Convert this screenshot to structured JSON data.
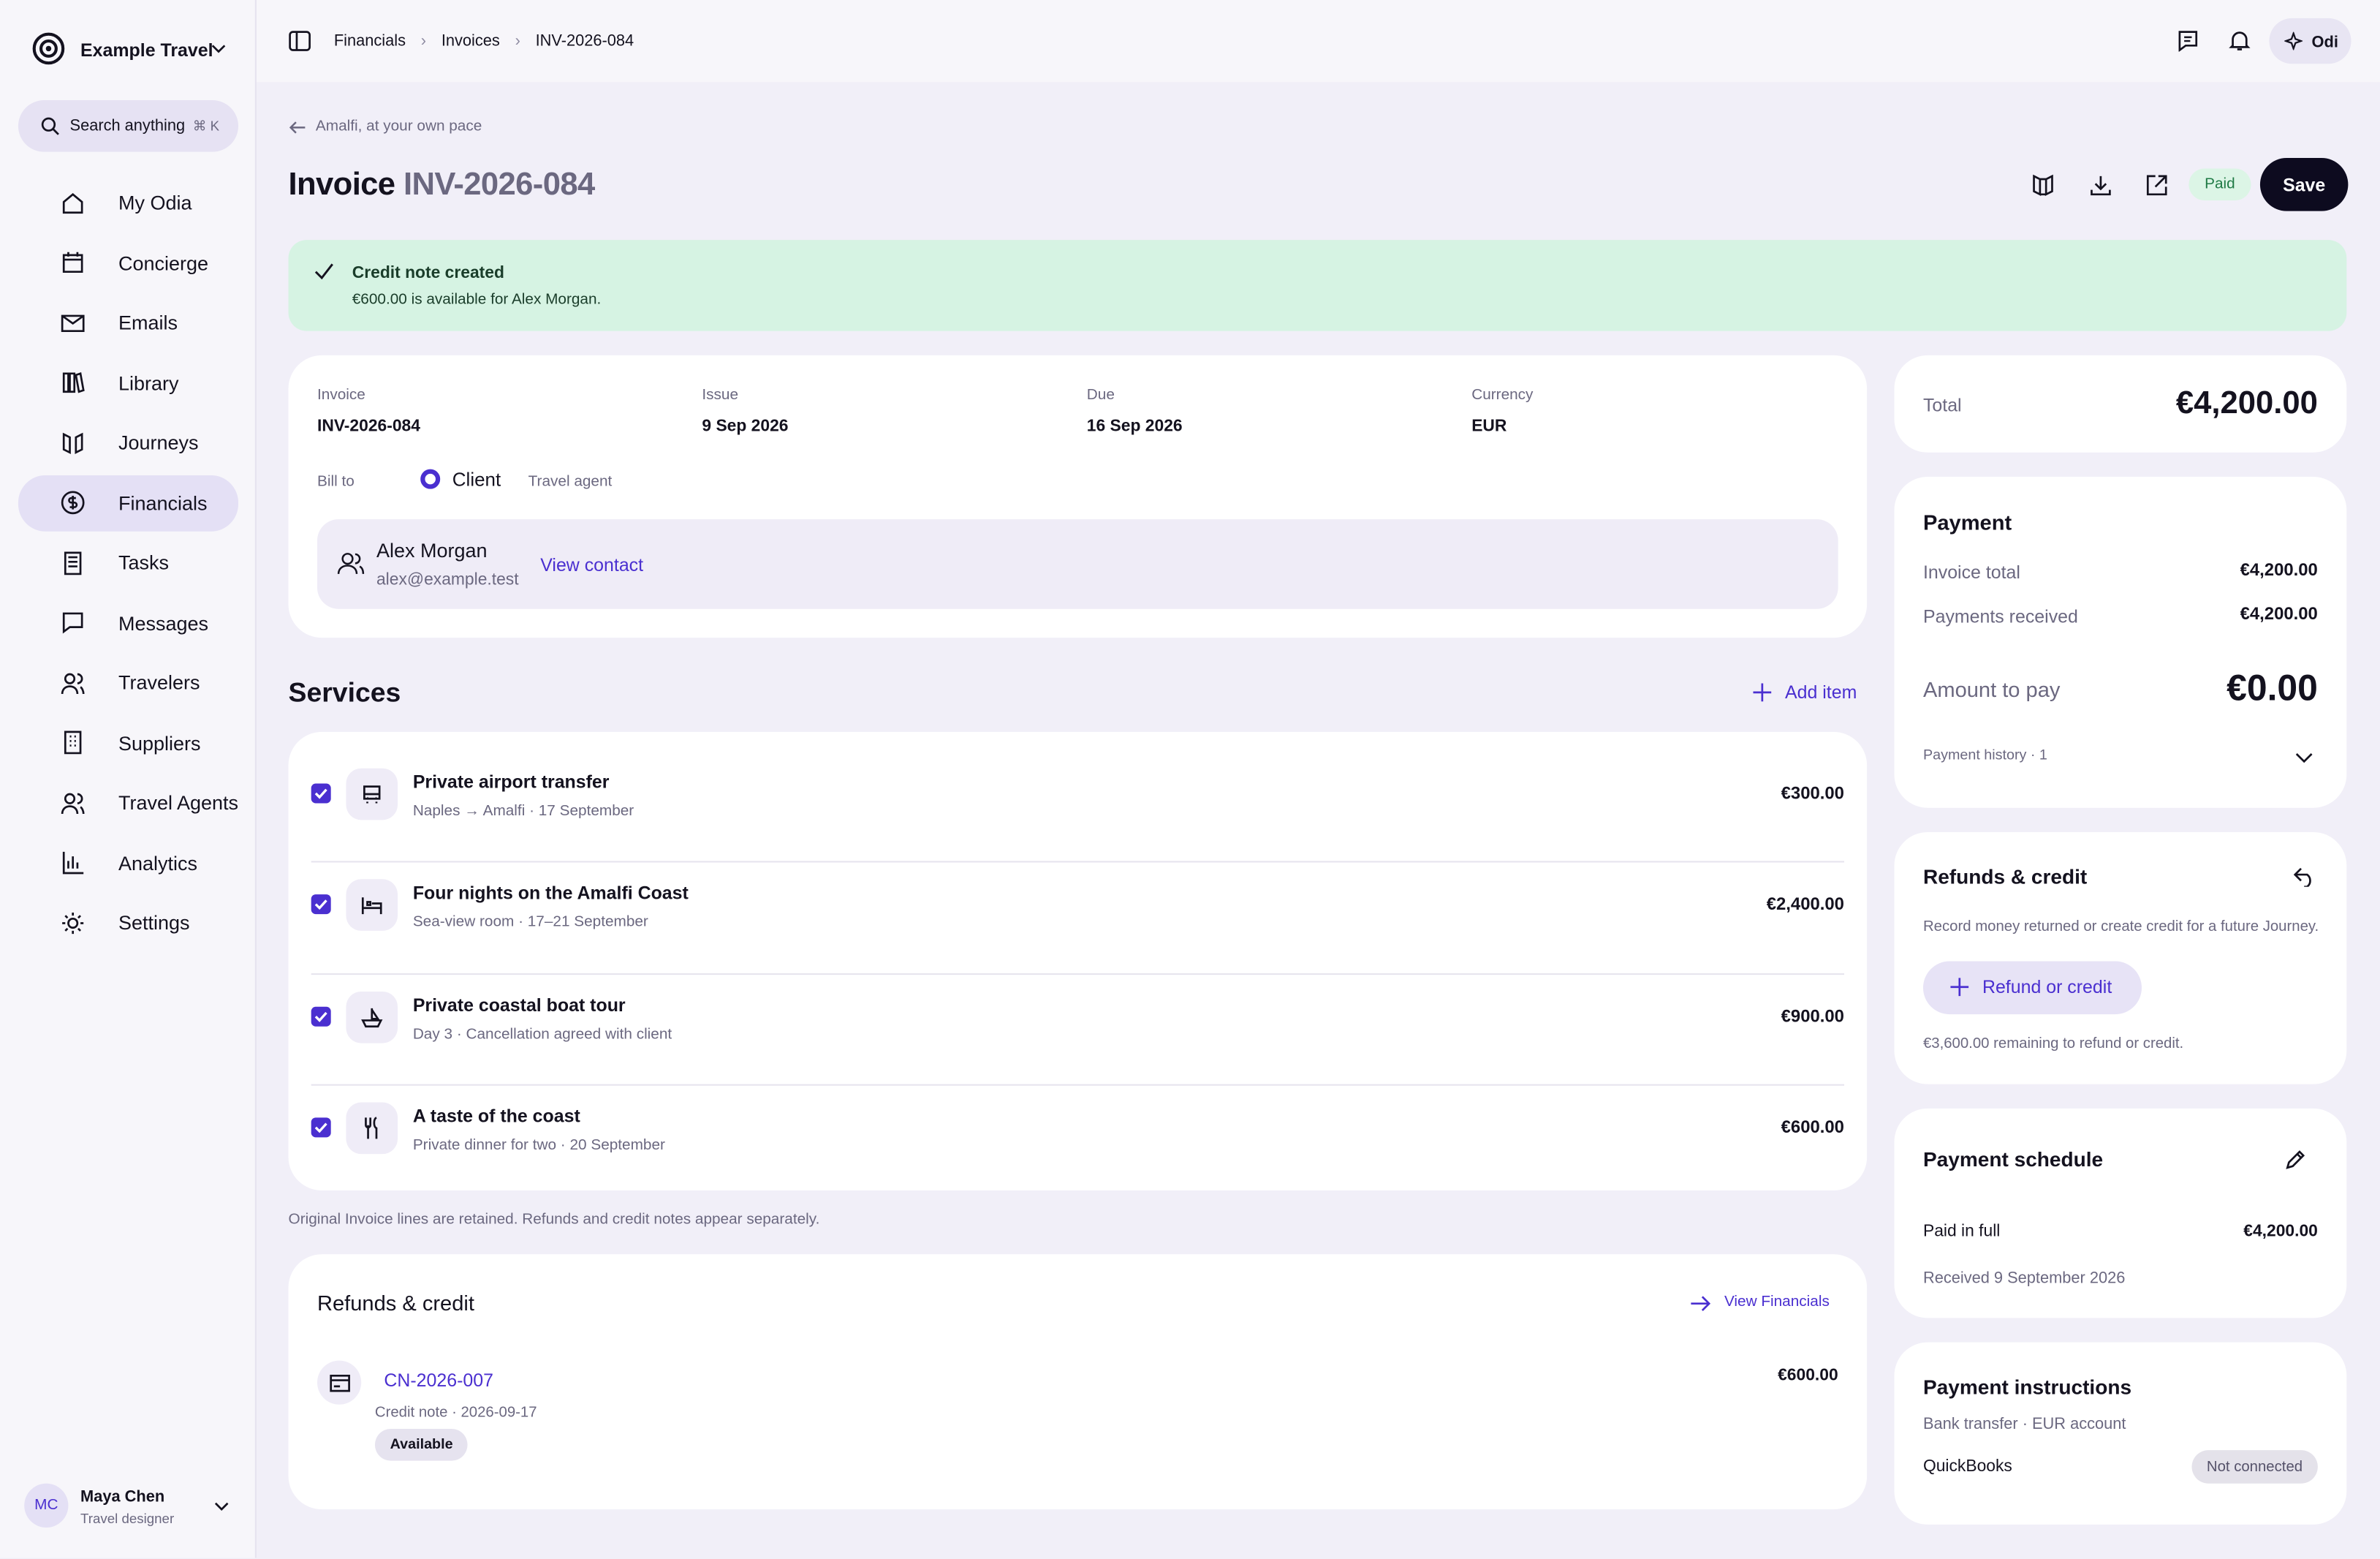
{
  "brand": "Example Travel",
  "search": {
    "placeholder": "Search anything",
    "shortcut": "⌘ K"
  },
  "nav": [
    "My Odia",
    "Concierge",
    "Emails",
    "Library",
    "Journeys",
    "Financials",
    "Tasks",
    "Messages",
    "Travelers",
    "Suppliers",
    "Travel Agents",
    "Analytics",
    "Settings"
  ],
  "user": {
    "initials": "MC",
    "name": "Maya Chen",
    "role": "Travel designer"
  },
  "breadcrumbs": [
    "Financials",
    "Invoices",
    "INV-2026-084"
  ],
  "assistant": "Odi",
  "back_link": "Amalfi, at your own pace",
  "header": {
    "title": "Invoice",
    "number": "INV-2026-084",
    "status": "Paid",
    "save": "Save"
  },
  "alert": {
    "title": "Credit note created",
    "text": "€600.00 is available for Alex Morgan."
  },
  "details": {
    "fields": [
      {
        "label": "Invoice",
        "value": "INV-2026-084"
      },
      {
        "label": "Issue",
        "value": "9 Sep 2026"
      },
      {
        "label": "Due",
        "value": "16 Sep 2026"
      },
      {
        "label": "Currency",
        "value": "EUR"
      }
    ],
    "bill_to": {
      "label": "Bill to",
      "options": [
        "Client",
        "Travel agent"
      ]
    },
    "contact": {
      "name": "Alex Morgan",
      "email": "alex@example.test",
      "link": "View contact"
    }
  },
  "services": {
    "title": "Services",
    "add": "Add item",
    "items": [
      {
        "name": "Private airport transfer",
        "detail": "Naples → Amalfi · 17 September",
        "amount": "€300.00"
      },
      {
        "name": "Four nights on the Amalfi Coast",
        "detail": "Sea-view room · 17–21 September",
        "amount": "€2,400.00"
      },
      {
        "name": "Private coastal boat tour",
        "detail": "Day 3 · Cancellation agreed with client",
        "amount": "€900.00"
      },
      {
        "name": "A taste of the coast",
        "detail": "Private dinner for two · 20 September",
        "amount": "€600.00"
      }
    ],
    "note": "Original Invoice lines are retained. Refunds and credit notes appear separately."
  },
  "refunds_section": {
    "title": "Refunds & credit",
    "link": "View Financials",
    "items": [
      {
        "id": "CN-2026-007",
        "meta": "Credit note · 2026-09-17",
        "status": "Available",
        "amount": "€600.00"
      }
    ]
  },
  "total": {
    "label": "Total",
    "value": "€4,200.00"
  },
  "payment": {
    "title": "Payment",
    "rows": [
      {
        "label": "Invoice total",
        "value": "€4,200.00"
      },
      {
        "label": "Payments received",
        "value": "€4,200.00"
      }
    ],
    "amount_label": "Amount to pay",
    "amount_value": "€0.00",
    "history": "Payment history · 1"
  },
  "refunds_card": {
    "title": "Refunds & credit",
    "text": "Record money returned or create credit for a future Journey.",
    "button": "Refund or credit",
    "remaining": "€3,600.00 remaining to refund or credit."
  },
  "schedule": {
    "title": "Payment schedule",
    "label": "Paid in full",
    "value": "€4,200.00",
    "note": "Received 9 September 2026"
  },
  "instructions": {
    "title": "Payment instructions",
    "text": "Bank transfer · EUR account",
    "integration": "QuickBooks",
    "status": "Not connected"
  }
}
